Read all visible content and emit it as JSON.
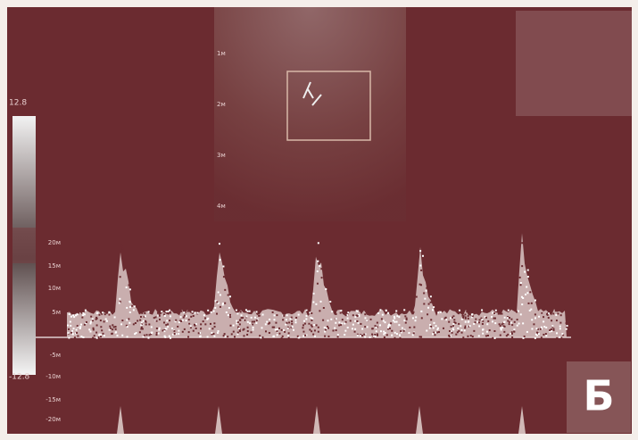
{
  "scale": {
    "top": "12.8",
    "bottom": "-12.8"
  },
  "depth_labels": [
    "1м",
    "2м",
    "3м",
    "4м"
  ],
  "velocity_labels": [
    "20м",
    "15м",
    "10м",
    "5м",
    "-5м",
    "-10м",
    "-15м",
    "-20м"
  ],
  "panel_letter": "Б"
}
